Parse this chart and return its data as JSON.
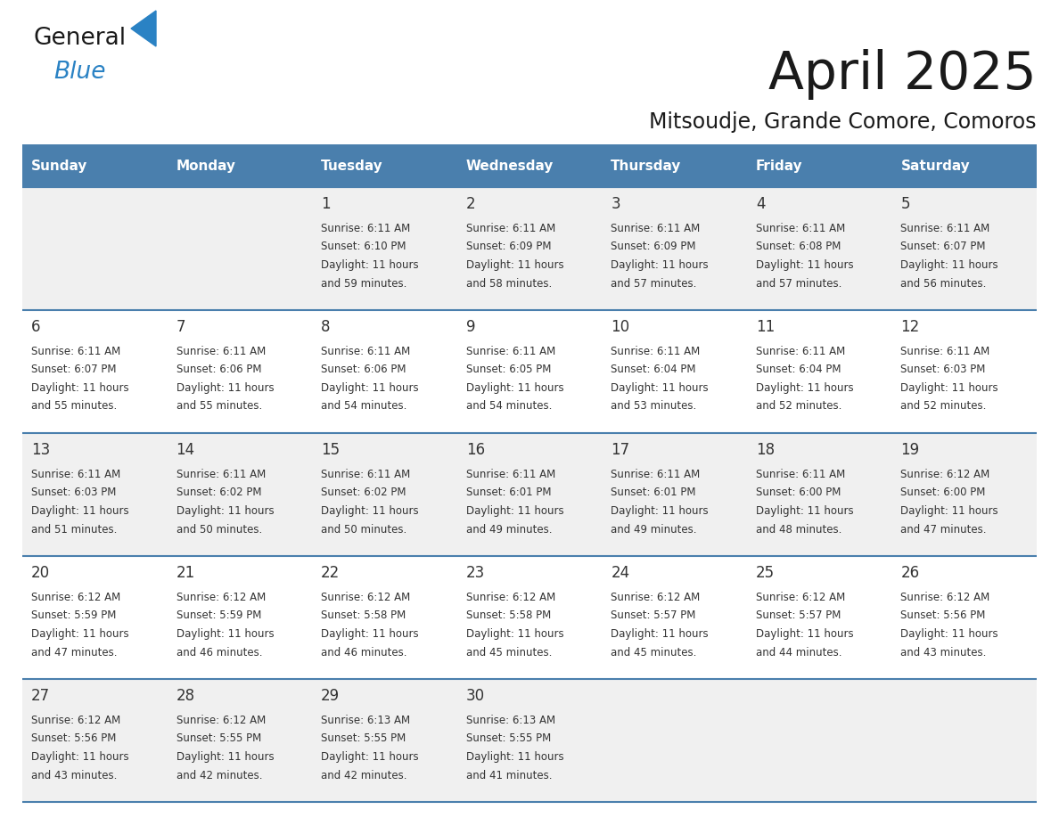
{
  "title": "April 2025",
  "subtitle": "Mitsoudje, Grande Comore, Comoros",
  "days_of_week": [
    "Sunday",
    "Monday",
    "Tuesday",
    "Wednesday",
    "Thursday",
    "Friday",
    "Saturday"
  ],
  "header_bg": "#4a7fad",
  "header_text": "#ffffff",
  "row_bg_odd": "#f0f0f0",
  "row_bg_even": "#ffffff",
  "divider_color": "#4a7fad",
  "text_color": "#333333",
  "logo_text_color": "#1a1a1a",
  "logo_blue_color": "#2a82c4",
  "calendar_data": [
    [
      {
        "day": "",
        "lines": []
      },
      {
        "day": "",
        "lines": []
      },
      {
        "day": "1",
        "lines": [
          "Sunrise: 6:11 AM",
          "Sunset: 6:10 PM",
          "Daylight: 11 hours",
          "and 59 minutes."
        ]
      },
      {
        "day": "2",
        "lines": [
          "Sunrise: 6:11 AM",
          "Sunset: 6:09 PM",
          "Daylight: 11 hours",
          "and 58 minutes."
        ]
      },
      {
        "day": "3",
        "lines": [
          "Sunrise: 6:11 AM",
          "Sunset: 6:09 PM",
          "Daylight: 11 hours",
          "and 57 minutes."
        ]
      },
      {
        "day": "4",
        "lines": [
          "Sunrise: 6:11 AM",
          "Sunset: 6:08 PM",
          "Daylight: 11 hours",
          "and 57 minutes."
        ]
      },
      {
        "day": "5",
        "lines": [
          "Sunrise: 6:11 AM",
          "Sunset: 6:07 PM",
          "Daylight: 11 hours",
          "and 56 minutes."
        ]
      }
    ],
    [
      {
        "day": "6",
        "lines": [
          "Sunrise: 6:11 AM",
          "Sunset: 6:07 PM",
          "Daylight: 11 hours",
          "and 55 minutes."
        ]
      },
      {
        "day": "7",
        "lines": [
          "Sunrise: 6:11 AM",
          "Sunset: 6:06 PM",
          "Daylight: 11 hours",
          "and 55 minutes."
        ]
      },
      {
        "day": "8",
        "lines": [
          "Sunrise: 6:11 AM",
          "Sunset: 6:06 PM",
          "Daylight: 11 hours",
          "and 54 minutes."
        ]
      },
      {
        "day": "9",
        "lines": [
          "Sunrise: 6:11 AM",
          "Sunset: 6:05 PM",
          "Daylight: 11 hours",
          "and 54 minutes."
        ]
      },
      {
        "day": "10",
        "lines": [
          "Sunrise: 6:11 AM",
          "Sunset: 6:04 PM",
          "Daylight: 11 hours",
          "and 53 minutes."
        ]
      },
      {
        "day": "11",
        "lines": [
          "Sunrise: 6:11 AM",
          "Sunset: 6:04 PM",
          "Daylight: 11 hours",
          "and 52 minutes."
        ]
      },
      {
        "day": "12",
        "lines": [
          "Sunrise: 6:11 AM",
          "Sunset: 6:03 PM",
          "Daylight: 11 hours",
          "and 52 minutes."
        ]
      }
    ],
    [
      {
        "day": "13",
        "lines": [
          "Sunrise: 6:11 AM",
          "Sunset: 6:03 PM",
          "Daylight: 11 hours",
          "and 51 minutes."
        ]
      },
      {
        "day": "14",
        "lines": [
          "Sunrise: 6:11 AM",
          "Sunset: 6:02 PM",
          "Daylight: 11 hours",
          "and 50 minutes."
        ]
      },
      {
        "day": "15",
        "lines": [
          "Sunrise: 6:11 AM",
          "Sunset: 6:02 PM",
          "Daylight: 11 hours",
          "and 50 minutes."
        ]
      },
      {
        "day": "16",
        "lines": [
          "Sunrise: 6:11 AM",
          "Sunset: 6:01 PM",
          "Daylight: 11 hours",
          "and 49 minutes."
        ]
      },
      {
        "day": "17",
        "lines": [
          "Sunrise: 6:11 AM",
          "Sunset: 6:01 PM",
          "Daylight: 11 hours",
          "and 49 minutes."
        ]
      },
      {
        "day": "18",
        "lines": [
          "Sunrise: 6:11 AM",
          "Sunset: 6:00 PM",
          "Daylight: 11 hours",
          "and 48 minutes."
        ]
      },
      {
        "day": "19",
        "lines": [
          "Sunrise: 6:12 AM",
          "Sunset: 6:00 PM",
          "Daylight: 11 hours",
          "and 47 minutes."
        ]
      }
    ],
    [
      {
        "day": "20",
        "lines": [
          "Sunrise: 6:12 AM",
          "Sunset: 5:59 PM",
          "Daylight: 11 hours",
          "and 47 minutes."
        ]
      },
      {
        "day": "21",
        "lines": [
          "Sunrise: 6:12 AM",
          "Sunset: 5:59 PM",
          "Daylight: 11 hours",
          "and 46 minutes."
        ]
      },
      {
        "day": "22",
        "lines": [
          "Sunrise: 6:12 AM",
          "Sunset: 5:58 PM",
          "Daylight: 11 hours",
          "and 46 minutes."
        ]
      },
      {
        "day": "23",
        "lines": [
          "Sunrise: 6:12 AM",
          "Sunset: 5:58 PM",
          "Daylight: 11 hours",
          "and 45 minutes."
        ]
      },
      {
        "day": "24",
        "lines": [
          "Sunrise: 6:12 AM",
          "Sunset: 5:57 PM",
          "Daylight: 11 hours",
          "and 45 minutes."
        ]
      },
      {
        "day": "25",
        "lines": [
          "Sunrise: 6:12 AM",
          "Sunset: 5:57 PM",
          "Daylight: 11 hours",
          "and 44 minutes."
        ]
      },
      {
        "day": "26",
        "lines": [
          "Sunrise: 6:12 AM",
          "Sunset: 5:56 PM",
          "Daylight: 11 hours",
          "and 43 minutes."
        ]
      }
    ],
    [
      {
        "day": "27",
        "lines": [
          "Sunrise: 6:12 AM",
          "Sunset: 5:56 PM",
          "Daylight: 11 hours",
          "and 43 minutes."
        ]
      },
      {
        "day": "28",
        "lines": [
          "Sunrise: 6:12 AM",
          "Sunset: 5:55 PM",
          "Daylight: 11 hours",
          "and 42 minutes."
        ]
      },
      {
        "day": "29",
        "lines": [
          "Sunrise: 6:13 AM",
          "Sunset: 5:55 PM",
          "Daylight: 11 hours",
          "and 42 minutes."
        ]
      },
      {
        "day": "30",
        "lines": [
          "Sunrise: 6:13 AM",
          "Sunset: 5:55 PM",
          "Daylight: 11 hours",
          "and 41 minutes."
        ]
      },
      {
        "day": "",
        "lines": []
      },
      {
        "day": "",
        "lines": []
      },
      {
        "day": "",
        "lines": []
      }
    ]
  ],
  "fig_width": 11.88,
  "fig_height": 9.18,
  "dpi": 100
}
